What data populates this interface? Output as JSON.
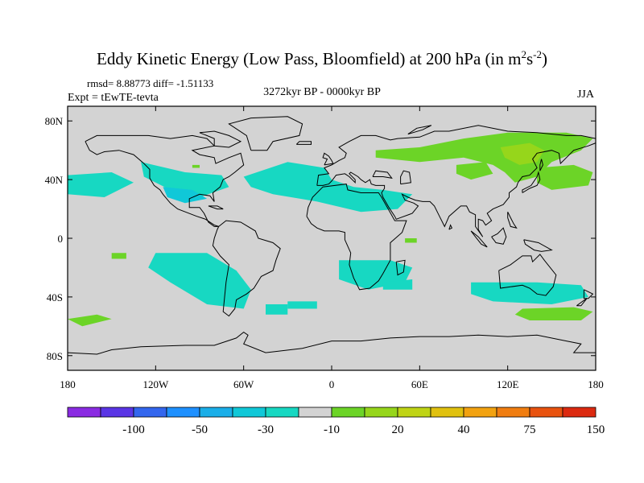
{
  "title": "Eddy Kinetic Energy (Low Pass, Bloomfield) at 200 hPa (in m",
  "title_units": {
    "sup1": "2",
    "mid": "s",
    "sup2": "-2",
    "end": ")"
  },
  "rmsd_text": "rmsd= 8.88773 diff= -1.51133",
  "subtitle": "3272kyr BP - 0000kyr BP",
  "expt": "Expt = tEwTE-tevta",
  "season": "JJA",
  "map": {
    "projection": "cylindrical-equidistant",
    "lon_range": [
      -180,
      180
    ],
    "lat_range": [
      -90,
      90
    ],
    "x_ticks": [
      "180",
      "120W",
      "60W",
      "0",
      "60E",
      "120E",
      "180"
    ],
    "y_ticks": [
      "80N",
      "40N",
      "0",
      "40S",
      "80S"
    ],
    "land_color": "#d3d3d3",
    "coastline_color": "#000000"
  },
  "colorbar": {
    "colors": [
      "#8a2be2",
      "#5a35e5",
      "#3366ee",
      "#1e90ff",
      "#1aaee8",
      "#10c8d8",
      "#17d8c2",
      "#d3d3d3",
      "#6cd427",
      "#96d61b",
      "#bfd415",
      "#e0c10f",
      "#f2a210",
      "#f07d10",
      "#e8520f",
      "#dc2a10"
    ],
    "labels": [
      "-100",
      "-50",
      "-30",
      "-10",
      "20",
      "40",
      "75",
      "150"
    ]
  },
  "regions_note": "",
  "anomaly_colors": {
    "neg": "#17d8c2",
    "neg_strong": "#10c8d8",
    "pos": "#6cd427",
    "pos_strong": "#96d61b"
  }
}
